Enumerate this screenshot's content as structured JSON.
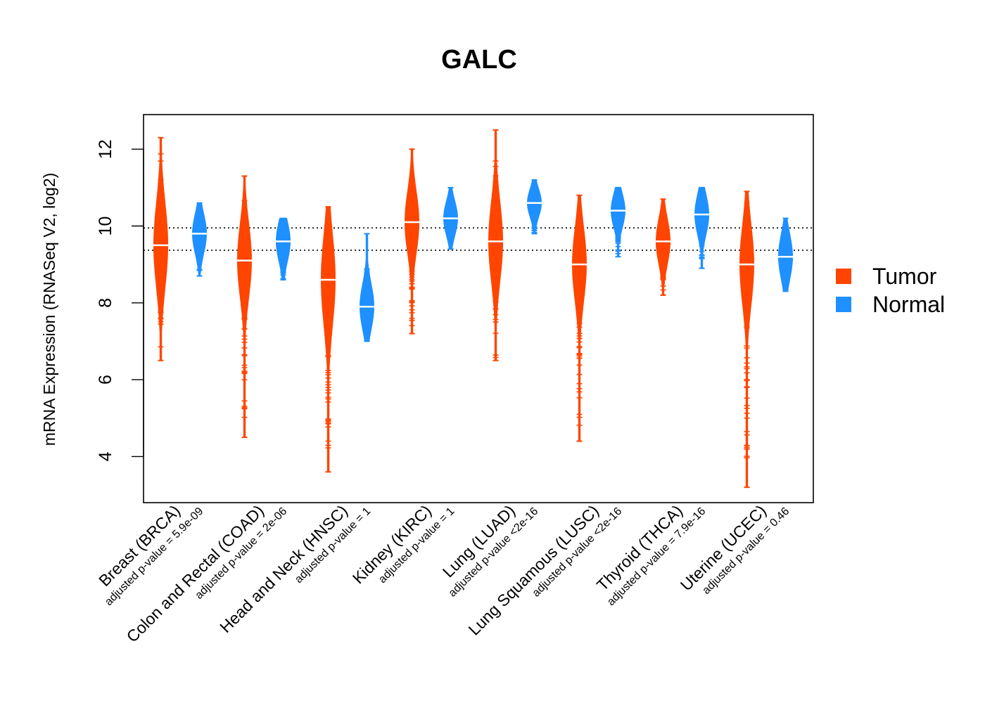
{
  "chart_data": {
    "type": "bean",
    "title": "GALC",
    "xlabel": "",
    "ylabel": "mRNA Expression (RNASeq V2, log2)",
    "ylim": [
      2.8,
      12.9
    ],
    "yticks": [
      4,
      6,
      8,
      10,
      12
    ],
    "reference_lines": [
      9.95,
      9.37
    ],
    "grid": false,
    "legend": {
      "placement": "right",
      "entries": [
        "Tumor",
        "Normal"
      ]
    },
    "colors": {
      "Tumor": "#FF4500",
      "Normal": "#1E90FF"
    },
    "categories": [
      {
        "name": "Breast (BRCA)",
        "pvalue": "adjusted p-value = 5.9e-09"
      },
      {
        "name": "Colon and Rectal (COAD)",
        "pvalue": "adjusted p-value = 2e-06"
      },
      {
        "name": "Head and Neck (HNSC)",
        "pvalue": "adjusted p-value = 1"
      },
      {
        "name": "Kidney (KIRC)",
        "pvalue": "adjusted p-value = 1"
      },
      {
        "name": "Lung (LUAD)",
        "pvalue": "adjusted p-value <2e-16"
      },
      {
        "name": "Lung Squamous (LUSC)",
        "pvalue": "adjusted p-value <2e-16"
      },
      {
        "name": "Thyroid (THCA)",
        "pvalue": "adjusted p-value = 7.9e-16"
      },
      {
        "name": "Uterine (UCEC)",
        "pvalue": "adjusted p-value = 0.46"
      }
    ],
    "series": [
      {
        "name": "Tumor",
        "beans": [
          {
            "min": 6.5,
            "max": 12.3,
            "median": 9.5,
            "q": [
              8.8,
              10.3
            ]
          },
          {
            "min": 4.5,
            "max": 11.3,
            "median": 9.1,
            "q": [
              8.5,
              9.8
            ]
          },
          {
            "min": 3.6,
            "max": 10.5,
            "median": 8.6,
            "q": [
              7.8,
              9.4
            ]
          },
          {
            "min": 7.2,
            "max": 12.0,
            "median": 10.1,
            "q": [
              9.6,
              10.7
            ]
          },
          {
            "min": 6.5,
            "max": 12.5,
            "median": 9.6,
            "q": [
              8.9,
              10.3
            ]
          },
          {
            "min": 4.4,
            "max": 10.8,
            "median": 9.0,
            "q": [
              8.4,
              9.7
            ]
          },
          {
            "min": 8.2,
            "max": 10.7,
            "median": 9.6,
            "q": [
              9.2,
              10.0
            ]
          },
          {
            "min": 3.2,
            "max": 10.9,
            "median": 9.0,
            "q": [
              8.3,
              9.7
            ]
          }
        ]
      },
      {
        "name": "Normal",
        "beans": [
          {
            "min": 8.7,
            "max": 10.6,
            "median": 9.8,
            "q": [
              9.4,
              10.1
            ]
          },
          {
            "min": 8.6,
            "max": 10.2,
            "median": 9.6,
            "q": [
              9.2,
              9.9
            ]
          },
          {
            "min": 7.0,
            "max": 9.8,
            "median": 7.9,
            "q": [
              7.6,
              8.4
            ]
          },
          {
            "min": 9.4,
            "max": 11.0,
            "median": 10.2,
            "q": [
              9.9,
              10.5
            ]
          },
          {
            "min": 9.8,
            "max": 11.2,
            "median": 10.6,
            "q": [
              10.3,
              10.8
            ]
          },
          {
            "min": 9.2,
            "max": 11.0,
            "median": 10.4,
            "q": [
              10.1,
              10.7
            ]
          },
          {
            "min": 8.9,
            "max": 11.0,
            "median": 10.3,
            "q": [
              9.9,
              10.6
            ]
          },
          {
            "min": 8.3,
            "max": 10.2,
            "median": 9.2,
            "q": [
              8.8,
              9.6
            ]
          }
        ]
      }
    ]
  }
}
